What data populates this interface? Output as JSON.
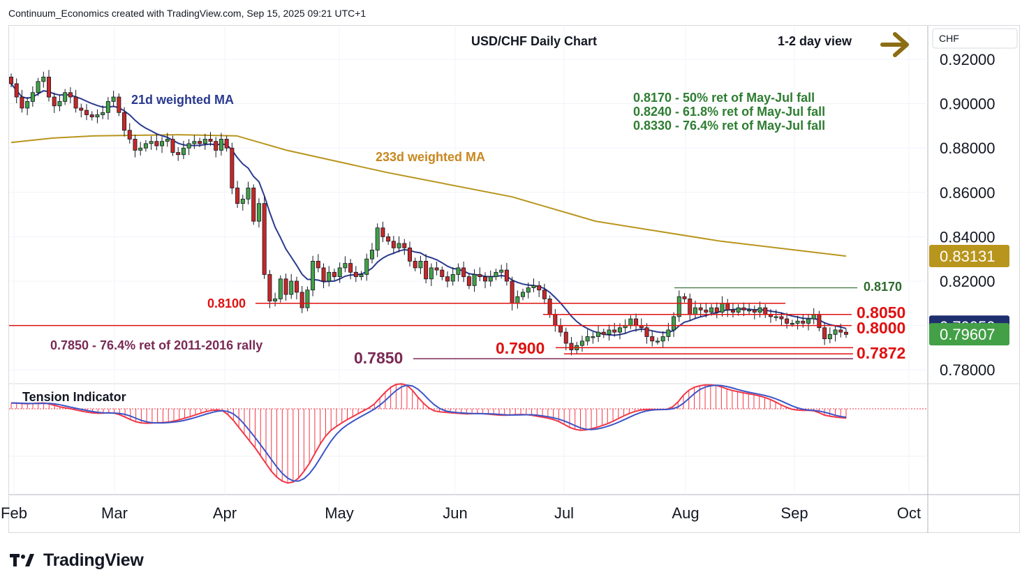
{
  "header": {
    "attribution": "Continuum_Economics created with TradingView.com, Sep 15, 2025 09:21 UTC+1"
  },
  "title": "USD/CHF Daily Chart",
  "view": {
    "label": "1-2 day view",
    "arrow_icon": "right-arrow-icon",
    "arrow_color": "#8b6d14"
  },
  "currency_label": "CHF",
  "chart_data": {
    "type": "candlestick",
    "symbol": "USD/CHF",
    "timeframe": "Daily",
    "ylim": [
      0.7785,
      0.9215
    ],
    "y_ticks": [
      "0.92000",
      "0.90000",
      "0.88000",
      "0.86000",
      "0.84000",
      "0.82000",
      "0.80000",
      "0.78000"
    ],
    "x_ticks": [
      "Feb",
      "Mar",
      "Apr",
      "May",
      "Jun",
      "Jul",
      "Aug",
      "Sep",
      "Oct"
    ],
    "price_badges": [
      {
        "label": "0.83131",
        "value": 0.83131,
        "color": "#b8951c"
      },
      {
        "label": "0.79950",
        "value": 0.7995,
        "color": "#1f2f6e"
      },
      {
        "label": "0.79607",
        "value": 0.79607,
        "color": "#43a047"
      }
    ],
    "series": [
      {
        "name": "21d weighted MA",
        "color": "#2a3a8f"
      },
      {
        "name": "233d weighted MA",
        "color": "#b8951c"
      }
    ],
    "levels": [
      {
        "label": "0.8170",
        "value": 0.817,
        "color": "#2e6b2e"
      },
      {
        "label": "0.8100",
        "value": 0.81,
        "color": "#e01010"
      },
      {
        "label": "0.8050",
        "value": 0.805,
        "color": "#e01010"
      },
      {
        "label": "0.8000",
        "value": 0.8,
        "color": "#e01010"
      },
      {
        "label": "0.7900",
        "value": 0.79,
        "color": "#e01010"
      },
      {
        "label": "0.7872",
        "value": 0.7872,
        "color": "#e01010"
      },
      {
        "label": "0.7850",
        "value": 0.785,
        "color": "#7a2a55"
      }
    ],
    "annotations": {
      "fib_notes": [
        "0.8170 - 50% ret of May-Jul fall",
        "0.8240 - 61.8% ret of May-Jul fall",
        "0.8330 - 76.4% ret of May-Jul fall"
      ],
      "rally_note": "0.7850 - 76.4% ret of 2011-2016 rally"
    },
    "closes": [
      0.909,
      0.903,
      0.898,
      0.901,
      0.905,
      0.91,
      0.912,
      0.903,
      0.899,
      0.901,
      0.905,
      0.903,
      0.898,
      0.897,
      0.895,
      0.894,
      0.895,
      0.896,
      0.901,
      0.903,
      0.896,
      0.888,
      0.884,
      0.879,
      0.88,
      0.882,
      0.883,
      0.881,
      0.883,
      0.884,
      0.878,
      0.877,
      0.88,
      0.882,
      0.883,
      0.882,
      0.884,
      0.883,
      0.879,
      0.884,
      0.88,
      0.862,
      0.855,
      0.857,
      0.862,
      0.847,
      0.855,
      0.823,
      0.811,
      0.812,
      0.821,
      0.814,
      0.82,
      0.815,
      0.808,
      0.816,
      0.829,
      0.826,
      0.82,
      0.824,
      0.822,
      0.826,
      0.828,
      0.824,
      0.822,
      0.823,
      0.83,
      0.834,
      0.844,
      0.84,
      0.838,
      0.835,
      0.837,
      0.835,
      0.829,
      0.826,
      0.829,
      0.821,
      0.826,
      0.825,
      0.822,
      0.82,
      0.823,
      0.826,
      0.822,
      0.818,
      0.823,
      0.822,
      0.82,
      0.822,
      0.824,
      0.825,
      0.82,
      0.81,
      0.813,
      0.815,
      0.817,
      0.818,
      0.816,
      0.812,
      0.805,
      0.8,
      0.797,
      0.792,
      0.789,
      0.791,
      0.793,
      0.795,
      0.795,
      0.797,
      0.796,
      0.798,
      0.797,
      0.799,
      0.8,
      0.803,
      0.8,
      0.799,
      0.795,
      0.793,
      0.793,
      0.795,
      0.798,
      0.804,
      0.813,
      0.812,
      0.805,
      0.808,
      0.807,
      0.806,
      0.808,
      0.806,
      0.81,
      0.807,
      0.806,
      0.808,
      0.807,
      0.807,
      0.806,
      0.808,
      0.805,
      0.804,
      0.804,
      0.803,
      0.801,
      0.801,
      0.802,
      0.801,
      0.803,
      0.805,
      0.799,
      0.794,
      0.796,
      0.798,
      0.797,
      0.796
    ]
  },
  "tension": {
    "title": "Tension Indicator",
    "colors": {
      "histogram": "#f23645",
      "fast": "#f23645",
      "slow": "#3a55c8"
    },
    "values": [
      0.3,
      0.29,
      0.27,
      0.26,
      0.27,
      0.29,
      0.3,
      0.25,
      0.18,
      0.1,
      0.05,
      0.0,
      -0.06,
      -0.12,
      -0.17,
      -0.21,
      -0.23,
      -0.22,
      -0.2,
      -0.22,
      -0.3,
      -0.42,
      -0.55,
      -0.66,
      -0.72,
      -0.74,
      -0.73,
      -0.71,
      -0.7,
      -0.68,
      -0.63,
      -0.56,
      -0.48,
      -0.4,
      -0.31,
      -0.22,
      -0.14,
      -0.08,
      -0.06,
      -0.1,
      -0.3,
      -0.6,
      -0.95,
      -1.3,
      -1.65,
      -2.0,
      -2.4,
      -2.8,
      -3.2,
      -3.5,
      -3.7,
      -3.8,
      -3.75,
      -3.55,
      -3.2,
      -2.8,
      -2.3,
      -1.8,
      -1.4,
      -1.1,
      -0.9,
      -0.72,
      -0.55,
      -0.4,
      -0.25,
      -0.1,
      0.05,
      0.25,
      0.55,
      0.85,
      1.1,
      1.25,
      1.28,
      1.2,
      0.95,
      0.6,
      0.3,
      0.05,
      -0.1,
      -0.15,
      -0.18,
      -0.2,
      -0.22,
      -0.24,
      -0.26,
      -0.25,
      -0.24,
      -0.25,
      -0.27,
      -0.3,
      -0.32,
      -0.33,
      -0.32,
      -0.3,
      -0.29,
      -0.3,
      -0.33,
      -0.38,
      -0.43,
      -0.48,
      -0.55,
      -0.65,
      -0.8,
      -0.95,
      -1.05,
      -1.1,
      -1.08,
      -1.02,
      -0.95,
      -0.86,
      -0.76,
      -0.64,
      -0.5,
      -0.36,
      -0.24,
      -0.14,
      -0.07,
      -0.04,
      -0.03,
      -0.04,
      -0.04,
      -0.02,
      0.1,
      0.35,
      0.7,
      0.95,
      1.1,
      1.18,
      1.22,
      1.22,
      1.2,
      1.12,
      1.02,
      0.94,
      0.88,
      0.82,
      0.77,
      0.72,
      0.66,
      0.58,
      0.48,
      0.35,
      0.2,
      0.08,
      -0.02,
      -0.06,
      -0.08,
      -0.08,
      -0.1,
      -0.2,
      -0.32,
      -0.38,
      -0.42,
      -0.45,
      -0.48
    ]
  },
  "brand": {
    "name": "TradingView",
    "logo_icon": "tradingview-logo-icon"
  }
}
